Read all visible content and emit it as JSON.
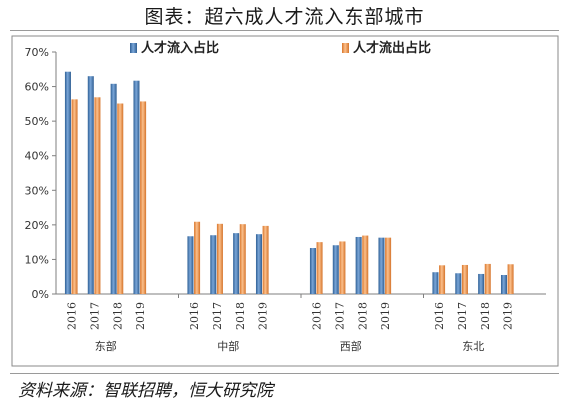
{
  "title": "图表：超六成人才流入东部城市",
  "source": "资料来源：智联招聘，恒大研究院",
  "chart_data": {
    "type": "bar",
    "ylim": [
      0,
      70
    ],
    "yticks": [
      0,
      10,
      20,
      30,
      40,
      50,
      60,
      70
    ],
    "ytick_labels": [
      "0%",
      "10%",
      "20%",
      "30%",
      "40%",
      "50%",
      "60%",
      "70%"
    ],
    "grid": false,
    "legend_position": "top",
    "groups": [
      {
        "name": "东部",
        "years": [
          "2016",
          "2017",
          "2018",
          "2019"
        ],
        "inflow": [
          64.3,
          63.0,
          60.8,
          61.7
        ],
        "outflow": [
          56.3,
          56.9,
          55.1,
          55.7
        ]
      },
      {
        "name": "中部",
        "years": [
          "2016",
          "2017",
          "2018",
          "2019"
        ],
        "inflow": [
          16.7,
          17.0,
          17.6,
          17.3
        ],
        "outflow": [
          20.9,
          20.3,
          20.2,
          19.7
        ]
      },
      {
        "name": "西部",
        "years": [
          "2016",
          "2017",
          "2018",
          "2019"
        ],
        "inflow": [
          13.3,
          14.1,
          16.5,
          16.3
        ],
        "outflow": [
          15.0,
          15.2,
          16.9,
          16.3
        ]
      },
      {
        "name": "东北",
        "years": [
          "2016",
          "2017",
          "2018",
          "2019"
        ],
        "inflow": [
          6.3,
          6.0,
          5.8,
          5.5
        ],
        "outflow": [
          8.3,
          8.4,
          8.7,
          8.6
        ]
      }
    ],
    "series": [
      {
        "name": "人才流入占比",
        "key": "inflow",
        "color": "#4f81bd"
      },
      {
        "name": "人才流出占比",
        "key": "outflow",
        "color": "#f79646"
      }
    ]
  }
}
